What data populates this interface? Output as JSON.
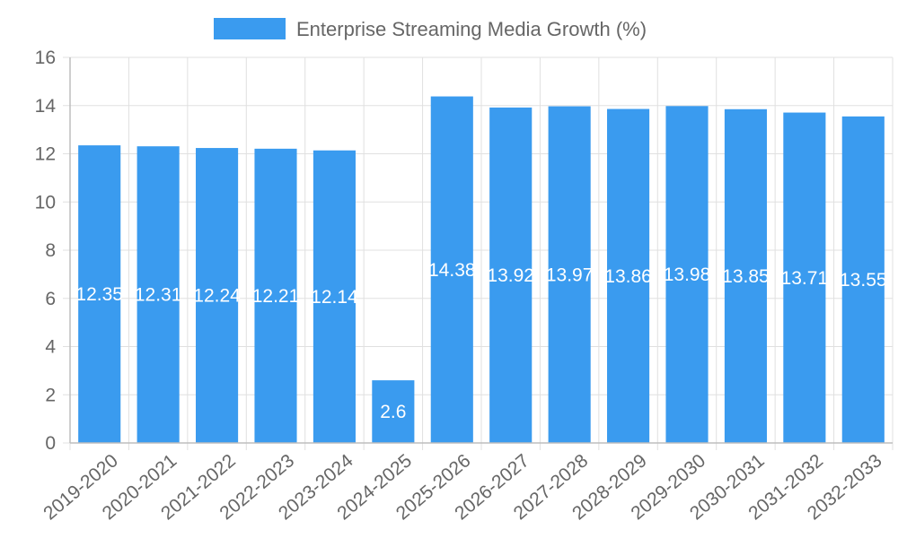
{
  "chart_data": {
    "type": "bar",
    "title": "",
    "categories": [
      "2019-2020",
      "2020-2021",
      "2021-2022",
      "2022-2023",
      "2023-2024",
      "2024-2025",
      "2025-2026",
      "2026-2027",
      "2027-2028",
      "2028-2029",
      "2029-2030",
      "2030-2031",
      "2031-2032",
      "2032-2033"
    ],
    "series": [
      {
        "name": "Enterprise Streaming Media Growth (%)",
        "values": [
          12.35,
          12.31,
          12.24,
          12.21,
          12.14,
          2.6,
          14.38,
          13.92,
          13.97,
          13.86,
          13.98,
          13.85,
          13.71,
          13.55
        ],
        "color": "#3a9bef"
      }
    ],
    "data_labels": [
      "12.35",
      "12.31",
      "12.24",
      "12.21",
      "12.14",
      "2.6",
      "14.38",
      "13.92",
      "13.97",
      "13.86",
      "13.98",
      "13.85",
      "13.71",
      "13.55"
    ],
    "xlabel": "",
    "ylabel": "",
    "ylim": [
      0,
      16
    ],
    "yticks": [
      0,
      2,
      4,
      6,
      8,
      10,
      12,
      14,
      16
    ],
    "ytick_labels": [
      "0",
      "2",
      "4",
      "6",
      "8",
      "10",
      "12",
      "14",
      "16"
    ],
    "grid": true,
    "legend": "top-center"
  },
  "colors": {
    "bar": "#3a9bef",
    "grid": "#e0e0e0",
    "axis": "#bdbdbd",
    "text": "#666666",
    "label": "#ffffff"
  }
}
